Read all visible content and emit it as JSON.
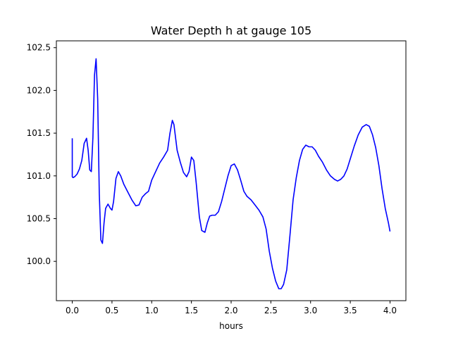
{
  "chart_data": {
    "type": "line",
    "title": "Water Depth h at gauge 105",
    "xlabel": "hours",
    "ylabel": "",
    "xlim": [
      -0.2,
      4.2
    ],
    "ylim": [
      99.54,
      102.58
    ],
    "x_ticks": [
      0.0,
      0.5,
      1.0,
      1.5,
      2.0,
      2.5,
      3.0,
      3.5,
      4.0
    ],
    "x_tick_labels": [
      "0.0",
      "0.5",
      "1.0",
      "1.5",
      "2.0",
      "2.5",
      "3.0",
      "3.5",
      "4.0"
    ],
    "y_ticks": [
      100.0,
      100.5,
      101.0,
      101.5,
      102.0,
      102.5
    ],
    "y_tick_labels": [
      "100.0",
      "100.5",
      "101.0",
      "101.5",
      "102.0",
      "102.5"
    ],
    "grid": false,
    "series": [
      {
        "color": "#0000ff",
        "x": [
          0.0,
          0.0,
          0.01,
          0.03,
          0.06,
          0.09,
          0.12,
          0.15,
          0.18,
          0.2,
          0.22,
          0.24,
          0.26,
          0.28,
          0.3,
          0.32,
          0.34,
          0.36,
          0.38,
          0.4,
          0.42,
          0.45,
          0.48,
          0.5,
          0.52,
          0.55,
          0.58,
          0.61,
          0.65,
          0.7,
          0.75,
          0.8,
          0.84,
          0.88,
          0.92,
          0.96,
          1.0,
          1.05,
          1.1,
          1.15,
          1.2,
          1.23,
          1.26,
          1.28,
          1.32,
          1.36,
          1.4,
          1.44,
          1.47,
          1.5,
          1.53,
          1.56,
          1.6,
          1.63,
          1.67,
          1.7,
          1.73,
          1.76,
          1.8,
          1.84,
          1.88,
          1.92,
          1.96,
          2.0,
          2.04,
          2.08,
          2.12,
          2.16,
          2.2,
          2.25,
          2.3,
          2.35,
          2.4,
          2.44,
          2.48,
          2.52,
          2.56,
          2.6,
          2.63,
          2.66,
          2.7,
          2.74,
          2.78,
          2.82,
          2.86,
          2.9,
          2.94,
          2.98,
          3.02,
          3.06,
          3.1,
          3.15,
          3.2,
          3.25,
          3.3,
          3.34,
          3.38,
          3.42,
          3.46,
          3.5,
          3.55,
          3.6,
          3.65,
          3.7,
          3.74,
          3.78,
          3.82,
          3.86,
          3.9,
          3.94,
          3.98,
          4.0
        ],
        "y": [
          101.44,
          100.99,
          100.98,
          100.99,
          101.02,
          101.08,
          101.18,
          101.38,
          101.44,
          101.3,
          101.07,
          101.05,
          101.45,
          102.18,
          102.37,
          101.9,
          100.8,
          100.25,
          100.21,
          100.45,
          100.62,
          100.67,
          100.62,
          100.6,
          100.7,
          100.97,
          101.05,
          101.0,
          100.9,
          100.81,
          100.72,
          100.65,
          100.66,
          100.75,
          100.79,
          100.82,
          100.95,
          101.05,
          101.15,
          101.22,
          101.3,
          101.5,
          101.65,
          101.6,
          101.3,
          101.16,
          101.04,
          100.99,
          101.05,
          101.22,
          101.18,
          100.92,
          100.52,
          100.36,
          100.34,
          100.45,
          100.53,
          100.54,
          100.54,
          100.58,
          100.7,
          100.85,
          101.0,
          101.12,
          101.14,
          101.07,
          100.95,
          100.82,
          100.76,
          100.72,
          100.66,
          100.6,
          100.52,
          100.38,
          100.12,
          99.92,
          99.77,
          99.68,
          99.68,
          99.73,
          99.9,
          100.3,
          100.72,
          100.98,
          101.18,
          101.31,
          101.36,
          101.34,
          101.34,
          101.3,
          101.23,
          101.16,
          101.07,
          101.0,
          100.96,
          100.94,
          100.96,
          101.0,
          101.08,
          101.2,
          101.35,
          101.48,
          101.57,
          101.6,
          101.58,
          101.48,
          101.33,
          101.12,
          100.85,
          100.62,
          100.45,
          100.35
        ]
      }
    ]
  }
}
